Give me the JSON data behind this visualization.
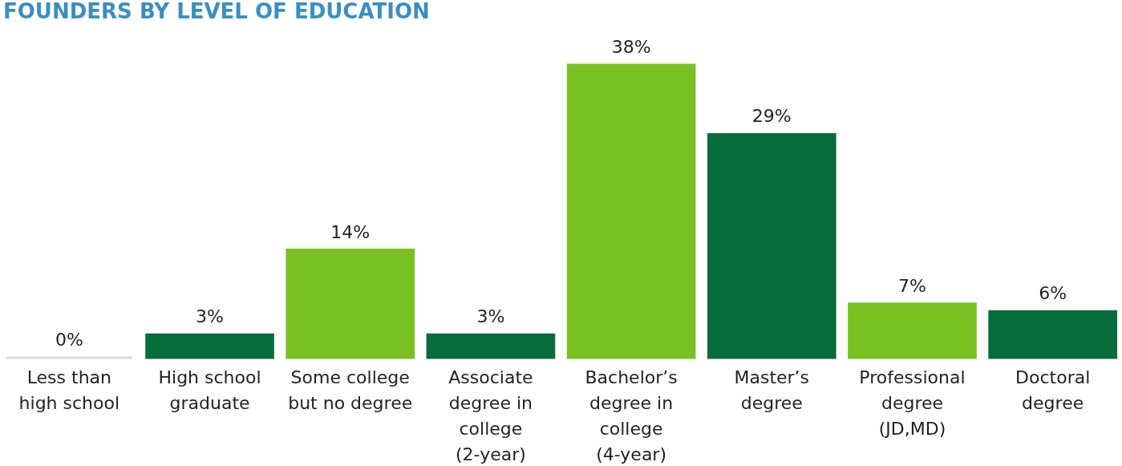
{
  "chart_data": {
    "type": "bar",
    "title": "FOUNDERS BY LEVEL OF EDUCATION",
    "categories": [
      "Less than high school",
      "High school graduate",
      "Some college but no degree",
      "Associate degree in college (2-year)",
      "Bachelor’s degree in college (4-year)",
      "Master’s degree",
      "Professional degree (JD,MD)",
      "Doctoral degree"
    ],
    "values": [
      0,
      3,
      14,
      3,
      38,
      29,
      7,
      6
    ],
    "colors": [
      "#d9d9d9",
      "#076d3b",
      "#7ac123",
      "#076d3b",
      "#7ac123",
      "#076d3b",
      "#7ac123",
      "#076d3b"
    ],
    "value_labels": [
      "0%",
      "3%",
      "14%",
      "3%",
      "38%",
      "29%",
      "7%",
      "6%"
    ]
  }
}
